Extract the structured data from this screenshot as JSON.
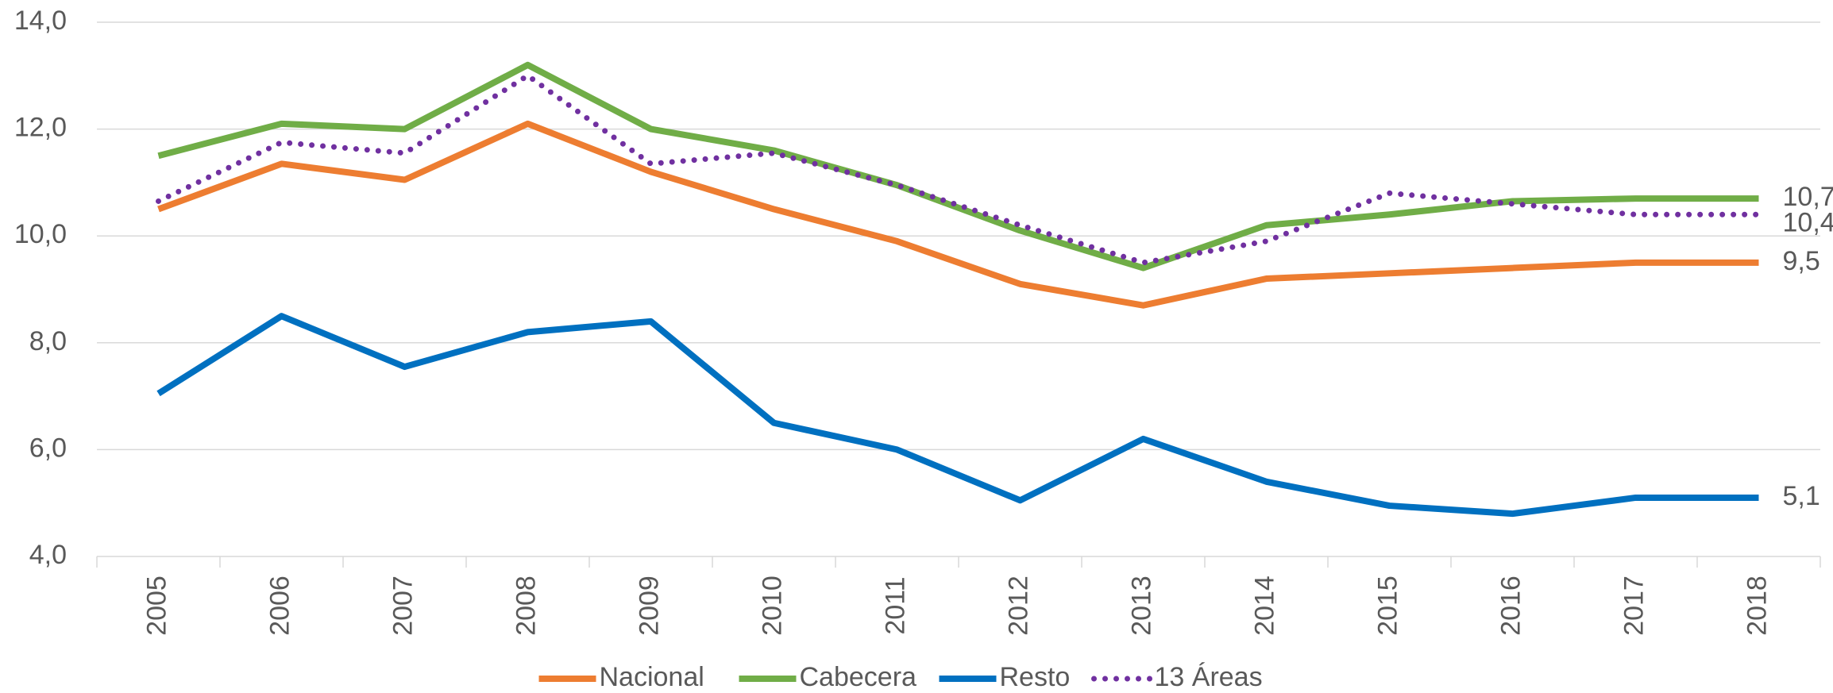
{
  "chart_data": {
    "type": "line",
    "categories": [
      "2005",
      "2006",
      "2007",
      "2008",
      "2009",
      "2010",
      "2011",
      "2012",
      "2013",
      "2014",
      "2015",
      "2016",
      "2017",
      "2018"
    ],
    "series": [
      {
        "name": "Nacional",
        "color": "#ed7d31",
        "values": [
          10.5,
          11.35,
          11.05,
          12.1,
          11.2,
          10.5,
          9.9,
          9.1,
          8.7,
          9.2,
          9.3,
          9.4,
          9.5,
          9.5
        ],
        "value_labels": [
          null,
          null,
          null,
          null,
          null,
          null,
          null,
          null,
          null,
          null,
          null,
          null,
          null,
          "9,5"
        ]
      },
      {
        "name": "Cabecera",
        "color": "#70ad47",
        "values": [
          11.5,
          12.1,
          12.0,
          13.2,
          12.0,
          11.6,
          10.95,
          10.1,
          9.4,
          10.2,
          10.4,
          10.65,
          10.7,
          10.7
        ],
        "value_labels": [
          null,
          null,
          null,
          null,
          null,
          null,
          null,
          null,
          null,
          null,
          null,
          null,
          null,
          "10,7"
        ]
      },
      {
        "name": "Resto",
        "color": "#0070c0",
        "values": [
          7.05,
          8.5,
          7.55,
          8.2,
          8.4,
          6.5,
          6.0,
          5.05,
          6.2,
          5.4,
          4.95,
          4.8,
          5.1,
          5.1
        ],
        "value_labels": [
          null,
          null,
          null,
          null,
          null,
          null,
          null,
          null,
          null,
          null,
          null,
          null,
          null,
          "5,1"
        ]
      },
      {
        "name": "13 Áreas",
        "color": "#7030a0",
        "dotted": true,
        "values": [
          10.65,
          11.75,
          11.55,
          13.0,
          11.35,
          11.55,
          10.95,
          10.2,
          9.5,
          9.9,
          10.8,
          10.6,
          10.4,
          10.4
        ],
        "value_labels": [
          null,
          null,
          null,
          null,
          null,
          null,
          null,
          null,
          null,
          null,
          null,
          null,
          null,
          "10,4"
        ]
      }
    ],
    "ylim": [
      4,
      14
    ],
    "yticks": [
      {
        "value": 4,
        "label": "4,0"
      },
      {
        "value": 6,
        "label": "6,0"
      },
      {
        "value": 8,
        "label": "8,0"
      },
      {
        "value": 10,
        "label": "10,0"
      },
      {
        "value": 12,
        "label": "12,0"
      },
      {
        "value": 14,
        "label": "14,0"
      }
    ],
    "grid": true,
    "legend": "bottom"
  }
}
